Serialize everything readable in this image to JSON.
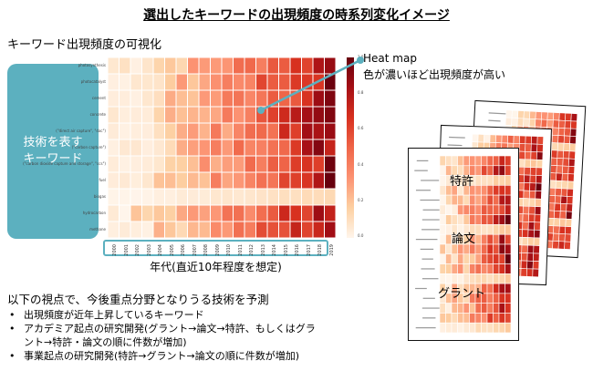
{
  "title": "選出したキーワードの出現頻度の時系列変化イメージ",
  "subtitle": "キーワード出現頻度の可視化",
  "tech_box": {
    "line1": "技術を表す",
    "line2": "キーワード"
  },
  "heatmap_label": "Heat map",
  "heatmap_desc": "色が濃いほど出現頻度が高い",
  "keywords": [
    "photosynthesis",
    "photocatalyst",
    "cement",
    "concrete",
    "(\"direct air capture\", \"dac\")",
    "(\"carbon capture\")",
    "(\"carbon dioxide capture and storage\", \"ccs\")",
    "fuel",
    "biogas",
    "hydrocarbon",
    "methane"
  ],
  "years": [
    "2000",
    "2001",
    "2002",
    "2003",
    "2004",
    "2005",
    "2006",
    "2007",
    "2008",
    "2009",
    "2010",
    "2011",
    "2012",
    "2013",
    "2014",
    "2015",
    "2016",
    "2017",
    "2018",
    "2019"
  ],
  "colorbar_ticks": [
    "1.0",
    "0.8",
    "0.6",
    "0.4",
    "0.2",
    "0.0"
  ],
  "year_caption": "年代(直近10年程度を想定)",
  "viewpoint": "以下の視点で、今後重点分野となりうる技術を予測",
  "bullets": [
    "出現頻度が近年上昇しているキーワード",
    "アカデミア起点の研究開発(グラント→論文→特許、もしくはグラ\nント→特許・論文の順に件数が増加)",
    "事業起点の研究開発(特許→グラント→論文の順に件数が増加)"
  ],
  "doc_labels": {
    "patent": "特許",
    "paper": "論文",
    "grant": "グラント"
  },
  "colors": {
    "accent": "#5cb0bf",
    "heat_high": "#67000d",
    "heat_low": "#fff5eb"
  }
}
